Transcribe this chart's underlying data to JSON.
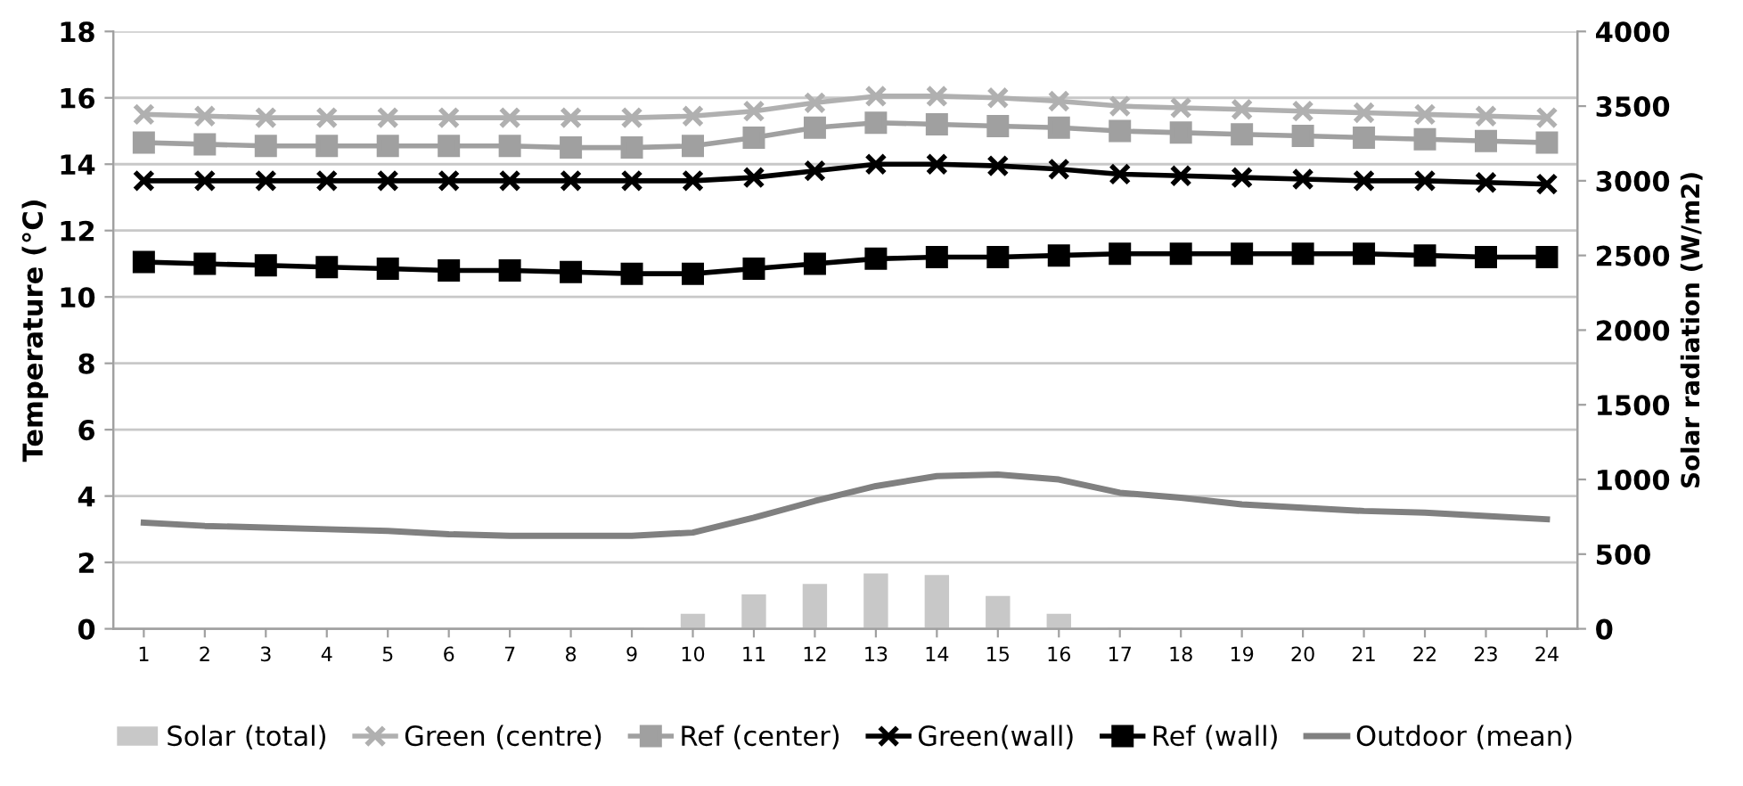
{
  "chart_data": {
    "type": "line",
    "ylabel": "Temperature (°C)",
    "y2label": "Solar radiation (W/m2)",
    "categories": [
      "1",
      "2",
      "3",
      "4",
      "5",
      "6",
      "7",
      "8",
      "9",
      "10",
      "11",
      "12",
      "13",
      "14",
      "15",
      "16",
      "17",
      "18",
      "19",
      "20",
      "21",
      "22",
      "23",
      "24"
    ],
    "series": [
      {
        "name": "Solar (total)",
        "type": "bar",
        "axis": "y2",
        "color": "#c8c8c8",
        "values": [
          0,
          0,
          0,
          0,
          0,
          0,
          0,
          0,
          10,
          100,
          230,
          300,
          370,
          360,
          220,
          100,
          10,
          0,
          0,
          0,
          0,
          0,
          0,
          0
        ]
      },
      {
        "name": "Green (centre)",
        "marker": "cross",
        "color": "#b0b0b0",
        "values": [
          15.5,
          15.45,
          15.4,
          15.4,
          15.4,
          15.4,
          15.4,
          15.4,
          15.4,
          15.45,
          15.6,
          15.85,
          16.05,
          16.05,
          16.0,
          15.9,
          15.75,
          15.7,
          15.65,
          15.6,
          15.55,
          15.5,
          15.45,
          15.4
        ]
      },
      {
        "name": "Ref (center)",
        "marker": "square",
        "color": "#a0a0a0",
        "values": [
          14.65,
          14.6,
          14.55,
          14.55,
          14.55,
          14.55,
          14.55,
          14.5,
          14.5,
          14.55,
          14.8,
          15.1,
          15.25,
          15.2,
          15.15,
          15.1,
          15.0,
          14.95,
          14.9,
          14.85,
          14.8,
          14.75,
          14.7,
          14.65
        ]
      },
      {
        "name": "Green(wall)",
        "marker": "cross",
        "color": "#000000",
        "values": [
          13.5,
          13.5,
          13.5,
          13.5,
          13.5,
          13.5,
          13.5,
          13.5,
          13.5,
          13.5,
          13.6,
          13.8,
          14.0,
          14.0,
          13.95,
          13.85,
          13.7,
          13.65,
          13.6,
          13.55,
          13.5,
          13.5,
          13.45,
          13.4
        ]
      },
      {
        "name": "Ref (wall)",
        "marker": "square",
        "color": "#000000",
        "values": [
          11.05,
          11.0,
          10.95,
          10.9,
          10.85,
          10.8,
          10.8,
          10.75,
          10.7,
          10.7,
          10.85,
          11.0,
          11.15,
          11.2,
          11.2,
          11.25,
          11.3,
          11.3,
          11.3,
          11.3,
          11.3,
          11.25,
          11.2,
          11.2
        ]
      },
      {
        "name": "Outdoor (mean)",
        "marker": "none",
        "color": "#808080",
        "values": [
          3.2,
          3.1,
          3.05,
          3.0,
          2.95,
          2.85,
          2.8,
          2.8,
          2.8,
          2.9,
          3.35,
          3.85,
          4.3,
          4.6,
          4.65,
          4.5,
          4.1,
          3.95,
          3.75,
          3.65,
          3.55,
          3.5,
          3.4,
          3.3
        ]
      }
    ],
    "ylim": [
      0,
      18
    ],
    "yticks": [
      0,
      2,
      4,
      6,
      8,
      10,
      12,
      14,
      16,
      18
    ],
    "y2lim": [
      0,
      4000
    ],
    "y2ticks": [
      0,
      500,
      1000,
      1500,
      2000,
      2500,
      3000,
      3500,
      4000
    ],
    "grid": "y",
    "legend": "bottom"
  }
}
